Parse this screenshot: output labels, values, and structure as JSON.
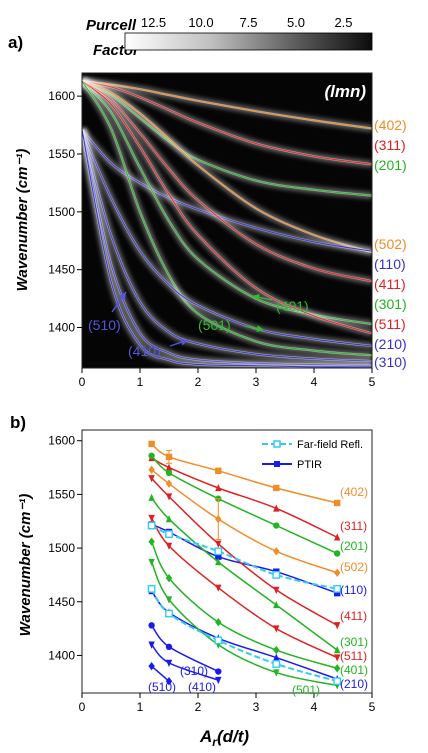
{
  "panel_a": {
    "tag": "a)",
    "colorbar": {
      "title_line1": "Purcell",
      "title_line2": "Factor",
      "ticks": [
        "12.5",
        "10.0",
        "7.5",
        "5.0",
        "2.5"
      ]
    },
    "corner_label": "(lmn)",
    "ylabel": "Wavenumber (cm⁻¹)",
    "xticks": [
      "0",
      "1",
      "2",
      "3",
      "4",
      "5"
    ],
    "yticks": [
      "1600",
      "1550",
      "1500",
      "1450",
      "1400"
    ],
    "right_labels": [
      {
        "text": "(402)",
        "color": "#f28c28"
      },
      {
        "text": "(311)",
        "color": "#e02020"
      },
      {
        "text": "(201)",
        "color": "#22b422"
      },
      {
        "text": "(502)",
        "color": "#f28c28"
      },
      {
        "text": "(110)",
        "color": "#3333cc"
      },
      {
        "text": "(411)",
        "color": "#e02020"
      },
      {
        "text": "(301)",
        "color": "#22b422"
      },
      {
        "text": "(511)",
        "color": "#e02020"
      },
      {
        "text": "(210)",
        "color": "#3333cc"
      },
      {
        "text": "(310)",
        "color": "#3333cc"
      }
    ],
    "annotations": [
      {
        "text": "(510)",
        "color": "#5555dd"
      },
      {
        "text": "(410)",
        "color": "#5555dd"
      },
      {
        "text": "(501)",
        "color": "#33bb33"
      },
      {
        "text": "(401)",
        "color": "#33bb33"
      }
    ]
  },
  "panel_b": {
    "tag": "b)",
    "ylabel": "Wavenumber (cm⁻¹)",
    "xlabel": "A_r(d/t)",
    "xlabel_main": "A",
    "xlabel_sub": "r",
    "xlabel_rest": "(d/t)",
    "xticks": [
      "0",
      "1",
      "2",
      "3",
      "4",
      "5"
    ],
    "yticks": [
      "1600",
      "1550",
      "1500",
      "1450",
      "1400"
    ],
    "legend": [
      {
        "text": "Far-field Refl.",
        "color": "#33ccee"
      },
      {
        "text": "PTIR",
        "color": "#1a1aee"
      }
    ],
    "right_labels": [
      {
        "text": "(402)",
        "color": "#f28c28"
      },
      {
        "text": "(311)",
        "color": "#e02020"
      },
      {
        "text": "(201)",
        "color": "#22b422"
      },
      {
        "text": "(502)",
        "color": "#f28c28"
      },
      {
        "text": "(110)",
        "color": "#1a1aee"
      },
      {
        "text": "(411)",
        "color": "#e02020"
      },
      {
        "text": "(301)",
        "color": "#22b422"
      },
      {
        "text": "(511)",
        "color": "#e02020"
      },
      {
        "text": "(401)",
        "color": "#22b422"
      },
      {
        "text": "(210)",
        "color": "#1a1aee"
      }
    ],
    "inner_labels": [
      {
        "text": "(310)",
        "color": "#1a1aee"
      },
      {
        "text": "(510)",
        "color": "#1a1aee"
      },
      {
        "text": "(410)",
        "color": "#1a1aee"
      },
      {
        "text": "(501)",
        "color": "#22b422"
      }
    ]
  },
  "chart_data": [
    {
      "type": "heatmap",
      "title": "",
      "ylabel": "Wavenumber (cm⁻¹)",
      "xlim": [
        0,
        5
      ],
      "ylim": [
        1365,
        1620
      ],
      "colorbar": {
        "label": "Purcell Factor",
        "range": [
          1,
          14
        ]
      },
      "x": [
        0,
        0.5,
        1,
        1.5,
        2,
        3,
        4,
        5
      ],
      "series": [
        {
          "name": "(402)",
          "color": "#f28c28",
          "values": [
            1613,
            1610,
            1606,
            1601,
            1596,
            1587,
            1579,
            1572
          ]
        },
        {
          "name": "(311)",
          "color": "#e02020",
          "values": [
            1613,
            1608,
            1599,
            1588,
            1577,
            1559,
            1548,
            1541
          ]
        },
        {
          "name": "(201)",
          "color": "#22b422",
          "values": [
            1613,
            1601,
            1581,
            1561,
            1545,
            1527,
            1519,
            1514
          ]
        },
        {
          "name": "(502)",
          "color": "#f28c28",
          "values": [
            1613,
            1603,
            1585,
            1563,
            1540,
            1503,
            1480,
            1465
          ]
        },
        {
          "name": "(110)",
          "color": "#3333cc",
          "values": [
            1571,
            1542,
            1525,
            1512,
            1502,
            1486,
            1474,
            1466
          ]
        },
        {
          "name": "(411)",
          "color": "#e02020",
          "values": [
            1613,
            1597,
            1568,
            1537,
            1510,
            1472,
            1451,
            1440
          ]
        },
        {
          "name": "(301)",
          "color": "#22b422",
          "values": [
            1613,
            1586,
            1538,
            1492,
            1459,
            1425,
            1411,
            1403
          ]
        },
        {
          "name": "(511)",
          "color": "#e02020",
          "values": [
            1613,
            1593,
            1556,
            1515,
            1480,
            1434,
            1410,
            1395
          ]
        },
        {
          "name": "(501)",
          "color": "#22b422",
          "values": [
            1613,
            1572,
            1500,
            1445,
            1412,
            1388,
            1380,
            1376
          ]
        },
        {
          "name": "(210)",
          "color": "#3333cc",
          "values": [
            1571,
            1512,
            1466,
            1437,
            1419,
            1399,
            1390,
            1384
          ]
        },
        {
          "name": "(310)",
          "color": "#3333cc",
          "values": [
            1571,
            1480,
            1422,
            1396,
            1386,
            1377,
            1373,
            1371
          ]
        },
        {
          "name": "(410)",
          "color": "#3333cc",
          "values": [
            1571,
            1455,
            1395,
            1378,
            1372,
            1369,
            1368,
            1367
          ]
        },
        {
          "name": "(510)",
          "color": "#3333cc",
          "values": [
            1571,
            1440,
            1385,
            1372,
            1368,
            1367,
            1366,
            1366
          ]
        }
      ]
    },
    {
      "type": "scatter",
      "title": "",
      "xlabel": "A_r(d/t)",
      "ylabel": "Wavenumber (cm⁻¹)",
      "xlim": [
        0,
        5
      ],
      "ylim": [
        1365,
        1610
      ],
      "legend_position": "top-right",
      "series": [
        {
          "name": "(402)",
          "color": "#f28c28",
          "marker": "square",
          "x": [
            1.2,
            1.5,
            2.35,
            3.35,
            4.4
          ],
          "y": [
            1597,
            1585,
            1572,
            1556,
            1542
          ]
        },
        {
          "name": "(311)",
          "color": "#e02020",
          "marker": "triangle-up",
          "x": [
            1.2,
            1.5,
            2.35,
            3.35,
            4.4
          ],
          "y": [
            1584,
            1575,
            1556,
            1537,
            1510
          ]
        },
        {
          "name": "(201)",
          "color": "#22b422",
          "marker": "circle",
          "x": [
            1.2,
            1.5,
            2.35,
            3.35,
            4.4
          ],
          "y": [
            1586,
            1570,
            1546,
            1521,
            1495
          ]
        },
        {
          "name": "(502)",
          "color": "#f28c28",
          "marker": "diamond",
          "x": [
            1.2,
            1.5,
            2.35,
            3.35,
            4.4
          ],
          "y": [
            1573,
            1560,
            1527,
            1497,
            1477
          ]
        },
        {
          "name": "(110)",
          "color": "#1a1aee",
          "marker": "square",
          "x": [
            1.2,
            1.5,
            2.35,
            3.35,
            4.4
          ],
          "y": [
            1522,
            1515,
            1492,
            1478,
            1458
          ]
        },
        {
          "name": "(411)",
          "color": "#e02020",
          "marker": "triangle-down",
          "x": [
            1.2,
            1.5,
            2.35,
            3.35,
            4.4
          ],
          "y": [
            1565,
            1548,
            1504,
            1461,
            1428
          ]
        },
        {
          "name": "(301)",
          "color": "#22b422",
          "marker": "triangle-up",
          "x": [
            1.2,
            1.5,
            2.35,
            3.35,
            4.4
          ],
          "y": [
            1547,
            1527,
            1487,
            1447,
            1405
          ]
        },
        {
          "name": "(511)",
          "color": "#e02020",
          "marker": "triangle-down",
          "x": [
            1.2,
            1.5,
            2.35,
            3.35,
            4.4
          ],
          "y": [
            1528,
            1502,
            1463,
            1425,
            1398
          ]
        },
        {
          "name": "(401)",
          "color": "#22b422",
          "marker": "diamond",
          "x": [
            1.2,
            1.5,
            2.35,
            3.35,
            4.4
          ],
          "y": [
            1506,
            1472,
            1431,
            1405,
            1388
          ]
        },
        {
          "name": "(210)",
          "color": "#1a1aee",
          "marker": "triangle-up",
          "x": [
            1.2,
            1.5,
            2.35,
            3.35,
            4.4
          ],
          "y": [
            1460,
            1440,
            1416,
            1398,
            1378
          ]
        },
        {
          "name": "(501)",
          "color": "#22b422",
          "marker": "triangle-down",
          "x": [
            1.2,
            1.5,
            2.35,
            3.35,
            4.4
          ],
          "y": [
            1487,
            1452,
            1410,
            1384,
            1372
          ]
        },
        {
          "name": "(310)",
          "color": "#1a1aee",
          "marker": "circle",
          "x": [
            1.2,
            1.5,
            2.35
          ],
          "y": [
            1428,
            1408,
            1385
          ]
        },
        {
          "name": "(410)",
          "color": "#1a1aee",
          "marker": "triangle-down",
          "x": [
            1.2,
            1.5,
            2.35
          ],
          "y": [
            1410,
            1393,
            1377
          ]
        },
        {
          "name": "(510)",
          "color": "#1a1aee",
          "marker": "diamond",
          "x": [
            1.2,
            1.5
          ],
          "y": [
            1390,
            1376
          ]
        },
        {
          "name": "Far-field Refl.",
          "color": "#33ccee",
          "marker": "open-square",
          "dashed": true,
          "x": [
            1.2,
            1.5,
            2.35,
            3.35,
            4.4
          ],
          "y": [
            1521,
            1513,
            1497,
            1475,
            1462
          ]
        },
        {
          "name": "Far-field Refl.",
          "color": "#33ccee",
          "marker": "open-square",
          "dashed": true,
          "x": [
            1.2,
            1.5,
            2.35,
            3.35,
            4.4
          ],
          "y": [
            1462,
            1439,
            1414,
            1392,
            1376
          ]
        }
      ]
    }
  ]
}
